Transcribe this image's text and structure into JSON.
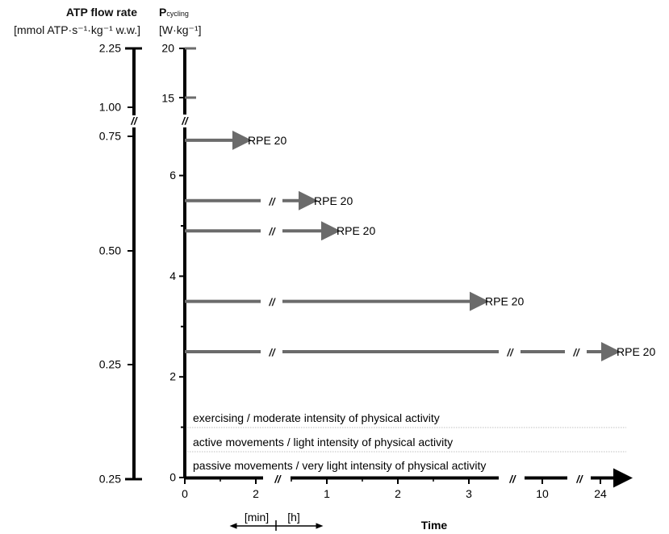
{
  "chart_data": {
    "type": "line",
    "title": "",
    "left_axis": {
      "label": "ATP flow rate",
      "unit": "[mmol ATP·s⁻¹·kg⁻¹ w.w.]",
      "tick_labels": [
        "2.25",
        "1.00",
        "0.75",
        "0.50",
        "0.25",
        "0.25"
      ],
      "axis_break": true
    },
    "right_axis": {
      "label": "P",
      "label_sub": "cycling",
      "unit": "[W·kg⁻¹]",
      "ylim": [
        0,
        7
      ],
      "ticks": [
        0,
        2,
        4,
        6
      ],
      "minor_ticks": [
        1,
        3,
        5
      ],
      "upper_ticks": [
        15,
        20
      ],
      "axis_break": true
    },
    "x_axis": {
      "label": "Time",
      "segments": [
        {
          "unit": "min",
          "ticks": [
            "0",
            "2"
          ]
        },
        {
          "unit": "h",
          "ticks": [
            "1",
            "2",
            "3"
          ]
        },
        {
          "unit": "h",
          "ticks": [
            "10"
          ]
        },
        {
          "unit": "h",
          "ticks": [
            "24"
          ]
        }
      ],
      "unit_labels": [
        "[min]",
        "[h]"
      ]
    },
    "bars": [
      {
        "power": 6.7,
        "end_label": "RPE 20",
        "breaks": 0
      },
      {
        "power": 5.5,
        "end_label": "RPE 20",
        "breaks": 1
      },
      {
        "power": 4.9,
        "end_label": "RPE 20",
        "breaks": 1
      },
      {
        "power": 3.5,
        "end_label": "RPE 20",
        "breaks": 1
      },
      {
        "power": 2.5,
        "end_label": "RPE 20",
        "breaks": 3
      }
    ],
    "upper_marks": [
      {
        "power": 20
      },
      {
        "power": 15
      }
    ],
    "zones": [
      {
        "label": "exercising / moderate intensity of physical activity"
      },
      {
        "label": "active movements / light intensity of physical activity"
      },
      {
        "label": "passive movements / very light intensity of physical activity"
      }
    ],
    "colors": {
      "arrow": "#6b6b6b",
      "axis": "#000000",
      "zone_line": "#c0c0c0",
      "text": "#111111"
    }
  }
}
